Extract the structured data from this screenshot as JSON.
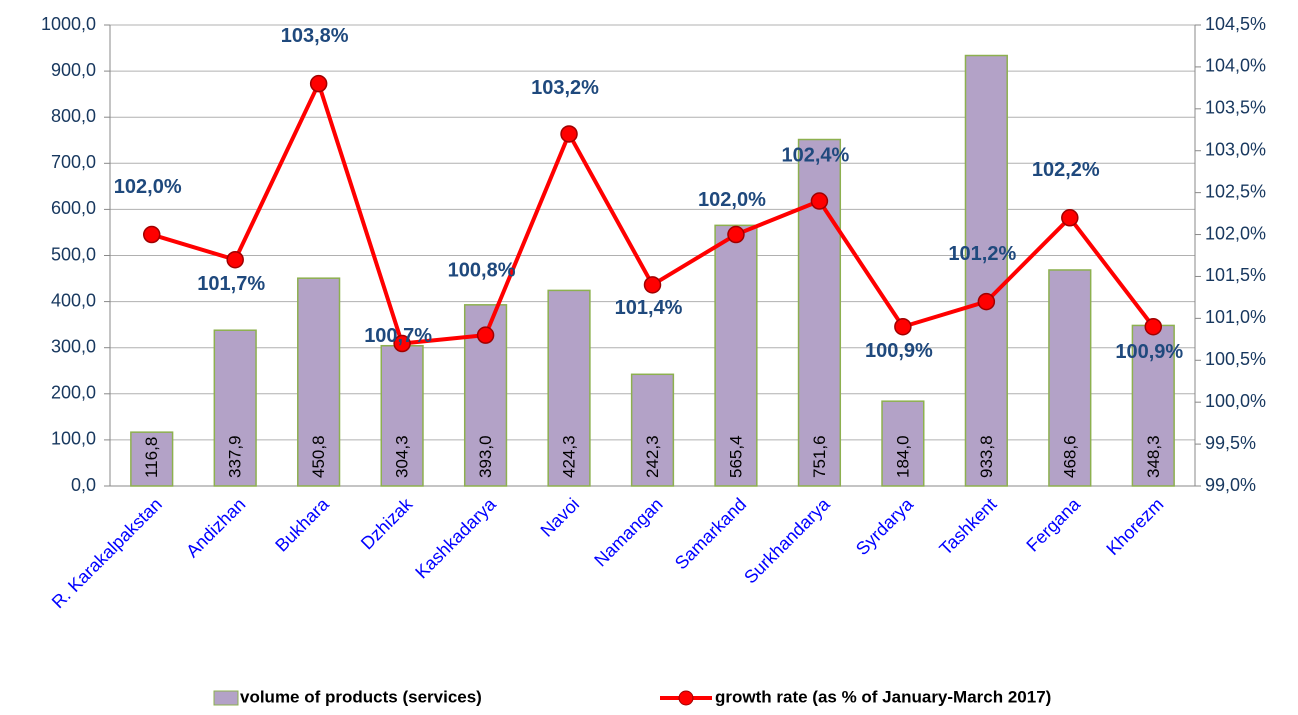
{
  "chart_data": {
    "type": "bar-line",
    "categories": [
      "R. Karakalpakstan",
      "Andizhan",
      "Bukhara",
      "Dzhizak",
      "Kashkadarya",
      "Navoi",
      "Namangan",
      "Samarkand",
      "Surkhandarya",
      "Syrdarya",
      "Tashkent",
      "Fergana",
      "Khorezm"
    ],
    "series": [
      {
        "name": "volume of products (services)",
        "type": "bar",
        "color": "#b3a2c7",
        "edge_color": "#8db04f",
        "values": [
          116.8,
          337.9,
          450.8,
          304.3,
          393.0,
          424.3,
          242.3,
          565.4,
          751.6,
          184.0,
          933.8,
          468.6,
          348.3
        ],
        "value_labels": [
          "116,8",
          "337,9",
          "450,8",
          "304,3",
          "393,0",
          "424,3",
          "242,3",
          "565,4",
          "751,6",
          "184,0",
          "933,8",
          "468,6",
          "348,3"
        ]
      },
      {
        "name": "growth rate (as % of January-March 2017)",
        "type": "line",
        "axis": "y2",
        "color": "#ff0000",
        "values": [
          102.0,
          101.7,
          103.8,
          100.7,
          100.8,
          103.2,
          101.4,
          102.0,
          102.4,
          100.9,
          101.2,
          102.2,
          100.9
        ],
        "value_labels": [
          "102,0%",
          "101,7%",
          "103,8%",
          "100,7%",
          "100,8%",
          "103,2%",
          "101,4%",
          "102,0%",
          "102,4%",
          "100,9%",
          "101,2%",
          "102,2%",
          "100,9%"
        ]
      }
    ],
    "ylim": [
      0,
      1000
    ],
    "yticks": [
      {
        "value": 0,
        "label": "0,0"
      },
      {
        "value": 100,
        "label": "100,0"
      },
      {
        "value": 200,
        "label": "200,0"
      },
      {
        "value": 300,
        "label": "300,0"
      },
      {
        "value": 400,
        "label": "400,0"
      },
      {
        "value": 500,
        "label": "500,0"
      },
      {
        "value": 600,
        "label": "600,0"
      },
      {
        "value": 700,
        "label": "700,0"
      },
      {
        "value": 800,
        "label": "800,0"
      },
      {
        "value": 900,
        "label": "900,0"
      },
      {
        "value": 1000,
        "label": "1000,0"
      }
    ],
    "y2lim": [
      99.0,
      104.5
    ],
    "y2ticks": [
      {
        "value": 99.0,
        "label": "99,0%"
      },
      {
        "value": 99.5,
        "label": "99,5%"
      },
      {
        "value": 100.0,
        "label": "100,0%"
      },
      {
        "value": 100.5,
        "label": "100,5%"
      },
      {
        "value": 101.0,
        "label": "101,0%"
      },
      {
        "value": 101.5,
        "label": "101,5%"
      },
      {
        "value": 102.0,
        "label": "102,0%"
      },
      {
        "value": 102.5,
        "label": "102,5%"
      },
      {
        "value": 103.0,
        "label": "103,0%"
      },
      {
        "value": 103.5,
        "label": "103,5%"
      },
      {
        "value": 104.0,
        "label": "104,0%"
      },
      {
        "value": 104.5,
        "label": "104,5%"
      }
    ],
    "grid": true,
    "legend": "bottom"
  }
}
